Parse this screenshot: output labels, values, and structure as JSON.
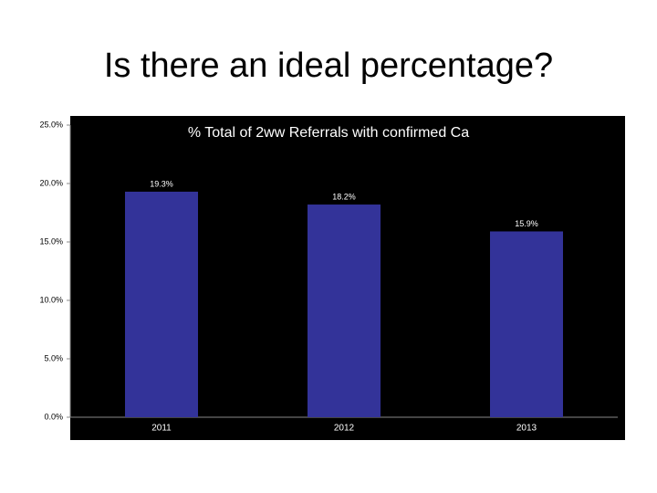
{
  "slide_title": "Is there an ideal percentage?",
  "chart_data": {
    "type": "bar",
    "title": "% Total of 2ww Referrals with confirmed Ca",
    "categories": [
      "2011",
      "2012",
      "2013"
    ],
    "values": [
      19.3,
      18.2,
      15.9
    ],
    "value_labels": [
      "19.3%",
      "18.2%",
      "15.9%"
    ],
    "color": "#333399",
    "ylim": [
      0,
      25
    ],
    "yticks": [
      {
        "value": 0,
        "label": "0.0%"
      },
      {
        "value": 5,
        "label": "5.0%"
      },
      {
        "value": 10,
        "label": "10.0%"
      },
      {
        "value": 15,
        "label": "15.0%"
      },
      {
        "value": 20,
        "label": "20.0%"
      },
      {
        "value": 25,
        "label": "25.0%"
      }
    ]
  }
}
